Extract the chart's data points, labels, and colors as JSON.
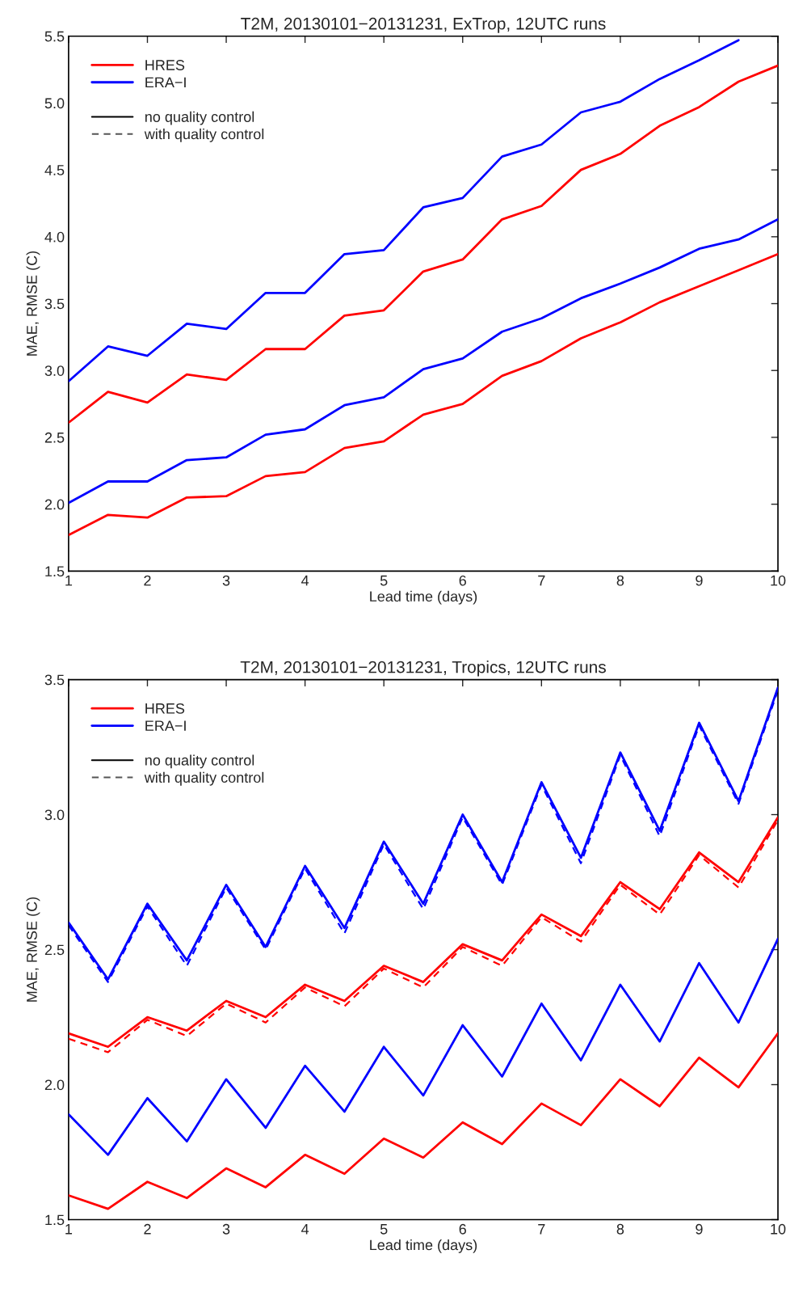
{
  "chart_data": [
    {
      "type": "line",
      "title": "T2M, 20130101−20131231, ExTrop, 12UTC runs",
      "xlabel": "Lead time (days)",
      "ylabel": "MAE, RMSE (C)",
      "x": [
        1,
        1.5,
        2,
        2.5,
        3,
        3.5,
        4,
        4.5,
        5,
        5.5,
        6,
        6.5,
        7,
        7.5,
        8,
        8.5,
        9,
        9.5,
        10
      ],
      "xlim": [
        1,
        10
      ],
      "xticks": [
        1,
        2,
        3,
        4,
        5,
        6,
        7,
        8,
        9,
        10
      ],
      "ylim": [
        1.5,
        5.5
      ],
      "yticks": [
        {
          "value": 1.5,
          "label": "1.5"
        },
        {
          "value": 2,
          "label": "2.0"
        },
        {
          "value": 2.5,
          "label": "2.5"
        },
        {
          "value": 3,
          "label": "3.0"
        },
        {
          "value": 3.5,
          "label": "3.5"
        },
        {
          "value": 4,
          "label": "4.0"
        },
        {
          "value": 4.5,
          "label": "4.5"
        },
        {
          "value": 5,
          "label": "5.0"
        },
        {
          "value": 5.5,
          "label": "5.5"
        }
      ],
      "grid": false,
      "legend": "top left",
      "marker": "none",
      "annotations": [
        "no quality control",
        "with quality control"
      ],
      "series": [
        {
          "name": "HRES",
          "color": "#ff0000",
          "line_style": "solid",
          "values": [
            2.61,
            2.84,
            2.76,
            2.97,
            2.93,
            3.16,
            3.16,
            3.41,
            3.45,
            3.74,
            3.83,
            4.13,
            4.23,
            4.5,
            4.62,
            4.83,
            4.97,
            5.16,
            5.28
          ]
        },
        {
          "name": "ERA−I",
          "color": "#0000ff",
          "line_style": "solid",
          "values": [
            2.92,
            3.18,
            3.11,
            3.35,
            3.31,
            3.58,
            3.58,
            3.87,
            3.9,
            4.22,
            4.29,
            4.6,
            4.69,
            4.93,
            5.01,
            5.18,
            5.32,
            5.47,
            null
          ]
        },
        {
          "color": "#ff0000",
          "line_style": "solid",
          "values": [
            1.77,
            1.92,
            1.9,
            2.05,
            2.06,
            2.21,
            2.24,
            2.42,
            2.47,
            2.67,
            2.75,
            2.96,
            3.07,
            3.24,
            3.36,
            3.51,
            3.63,
            3.75,
            3.87
          ]
        },
        {
          "color": "#0000ff",
          "line_style": "solid",
          "values": [
            2.01,
            2.17,
            2.17,
            2.33,
            2.35,
            2.52,
            2.56,
            2.74,
            2.8,
            3.01,
            3.09,
            3.29,
            3.39,
            3.54,
            3.65,
            3.77,
            3.91,
            3.98,
            4.13
          ]
        }
      ]
    },
    {
      "type": "line",
      "title": "T2M, 20130101−20131231, Tropics, 12UTC runs",
      "xlabel": "Lead time (days)",
      "ylabel": "MAE, RMSE (C)",
      "x": [
        1,
        1.5,
        2,
        2.5,
        3,
        3.5,
        4,
        4.5,
        5,
        5.5,
        6,
        6.5,
        7,
        7.5,
        8,
        8.5,
        9,
        9.5,
        10
      ],
      "xlim": [
        1,
        10
      ],
      "xticks": [
        1,
        2,
        3,
        4,
        5,
        6,
        7,
        8,
        9,
        10
      ],
      "ylim": [
        1.5,
        3.5
      ],
      "yticks": [
        {
          "value": 1.5,
          "label": "1.5"
        },
        {
          "value": 2,
          "label": "2.0"
        },
        {
          "value": 2.5,
          "label": "2.5"
        },
        {
          "value": 3,
          "label": "3.0"
        },
        {
          "value": 3.5,
          "label": "3.5"
        }
      ],
      "grid": false,
      "legend": "top left",
      "marker": "none",
      "annotations": [
        "no quality control",
        "with quality control"
      ],
      "series": [
        {
          "name": "HRES",
          "color": "#ff0000",
          "line_style": "solid",
          "values": [
            2.19,
            2.14,
            2.25,
            2.2,
            2.31,
            2.25,
            2.37,
            2.31,
            2.44,
            2.38,
            2.52,
            2.46,
            2.63,
            2.55,
            2.75,
            2.65,
            2.86,
            2.75,
            2.99
          ]
        },
        {
          "name": "ERA−I",
          "color": "#0000ff",
          "line_style": "solid",
          "values": [
            2.6,
            2.39,
            2.67,
            2.46,
            2.74,
            2.51,
            2.81,
            2.58,
            2.9,
            2.67,
            3.0,
            2.75,
            3.12,
            2.84,
            3.23,
            2.94,
            3.34,
            3.05,
            3.47
          ]
        },
        {
          "color": "#ff0000",
          "line_style": "solid",
          "values": [
            1.59,
            1.54,
            1.64,
            1.58,
            1.69,
            1.62,
            1.74,
            1.67,
            1.8,
            1.73,
            1.86,
            1.78,
            1.93,
            1.85,
            2.02,
            1.92,
            2.1,
            1.99,
            2.19
          ]
        },
        {
          "color": "#0000ff",
          "line_style": "solid",
          "values": [
            1.89,
            1.74,
            1.95,
            1.79,
            2.02,
            1.84,
            2.07,
            1.9,
            2.14,
            1.96,
            2.22,
            2.03,
            2.3,
            2.09,
            2.37,
            2.16,
            2.45,
            2.23,
            2.54
          ]
        },
        {
          "color": "#ff0000",
          "line_style": "dashed",
          "values": [
            2.17,
            2.12,
            2.24,
            2.18,
            2.3,
            2.23,
            2.36,
            2.29,
            2.43,
            2.36,
            2.51,
            2.44,
            2.62,
            2.53,
            2.74,
            2.63,
            2.85,
            2.73,
            2.98
          ]
        },
        {
          "color": "#0000ff",
          "line_style": "dashed",
          "values": [
            2.59,
            2.38,
            2.66,
            2.44,
            2.73,
            2.5,
            2.8,
            2.56,
            2.89,
            2.65,
            2.99,
            2.74,
            3.11,
            2.82,
            3.22,
            2.92,
            3.33,
            3.04,
            3.46
          ]
        }
      ]
    }
  ]
}
